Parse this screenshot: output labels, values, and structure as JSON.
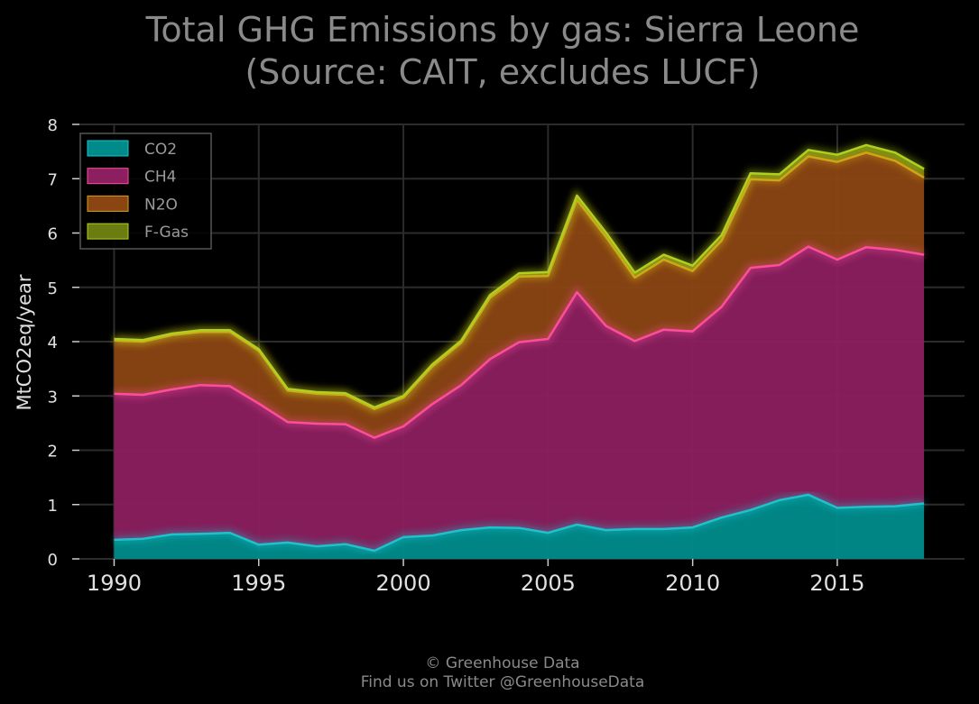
{
  "chart_data": {
    "type": "area",
    "stacked": true,
    "title": [
      "Total GHG Emissions by gas: Sierra Leone",
      "(Source: CAIT, excludes LUCF)"
    ],
    "xlabel": "",
    "ylabel": "MtCO2eq/year",
    "xlim": [
      1988.8,
      2019.4
    ],
    "ylim": [
      0,
      8
    ],
    "xticks": [
      1990,
      1995,
      2000,
      2005,
      2010,
      2015
    ],
    "yticks": [
      0,
      1,
      2,
      3,
      4,
      5,
      6,
      7,
      8
    ],
    "grid": true,
    "legend_position": "top-left",
    "x": [
      1990,
      1991,
      1992,
      1993,
      1994,
      1995,
      1996,
      1997,
      1998,
      1999,
      2000,
      2001,
      2002,
      2003,
      2004,
      2005,
      2006,
      2007,
      2008,
      2009,
      2010,
      2011,
      2012,
      2013,
      2014,
      2015,
      2016,
      2017,
      2018
    ],
    "series": [
      {
        "name": "CO2",
        "color": "#008b8b",
        "line_color": "#1cc3cc",
        "values": [
          0.35,
          0.37,
          0.45,
          0.46,
          0.48,
          0.26,
          0.3,
          0.23,
          0.27,
          0.15,
          0.4,
          0.43,
          0.53,
          0.58,
          0.57,
          0.48,
          0.63,
          0.53,
          0.55,
          0.55,
          0.58,
          0.76,
          0.9,
          1.08,
          1.18,
          0.94,
          0.96,
          0.97,
          1.02
        ]
      },
      {
        "name": "CH4",
        "color": "#8b1f5f",
        "line_color": "#ff4d9e",
        "values": [
          2.69,
          2.65,
          2.67,
          2.74,
          2.7,
          2.6,
          2.22,
          2.26,
          2.21,
          2.08,
          2.04,
          2.42,
          2.67,
          3.1,
          3.42,
          3.57,
          4.28,
          3.76,
          3.46,
          3.67,
          3.61,
          3.88,
          4.46,
          4.33,
          4.57,
          4.57,
          4.78,
          4.72,
          4.58
        ]
      },
      {
        "name": "N2O",
        "color": "#8b4513",
        "line_color": "#d4a017",
        "values": [
          0.98,
          0.98,
          1.0,
          0.98,
          1.0,
          0.97,
          0.58,
          0.55,
          0.54,
          0.53,
          0.53,
          0.69,
          0.78,
          1.13,
          1.21,
          1.16,
          1.7,
          1.64,
          1.17,
          1.29,
          1.11,
          1.22,
          1.63,
          1.56,
          1.66,
          1.8,
          1.74,
          1.64,
          1.42
        ]
      },
      {
        "name": "F-Gas",
        "color": "#6b7d10",
        "line_color": "#b0d01e",
        "values": [
          0.03,
          0.03,
          0.03,
          0.03,
          0.03,
          0.03,
          0.03,
          0.03,
          0.03,
          0.03,
          0.03,
          0.04,
          0.04,
          0.05,
          0.06,
          0.07,
          0.08,
          0.08,
          0.09,
          0.09,
          0.1,
          0.1,
          0.11,
          0.11,
          0.12,
          0.13,
          0.14,
          0.15,
          0.16
        ]
      }
    ],
    "footer": [
      "© Greenhouse Data",
      "Find us on Twitter @GreenhouseData"
    ]
  }
}
